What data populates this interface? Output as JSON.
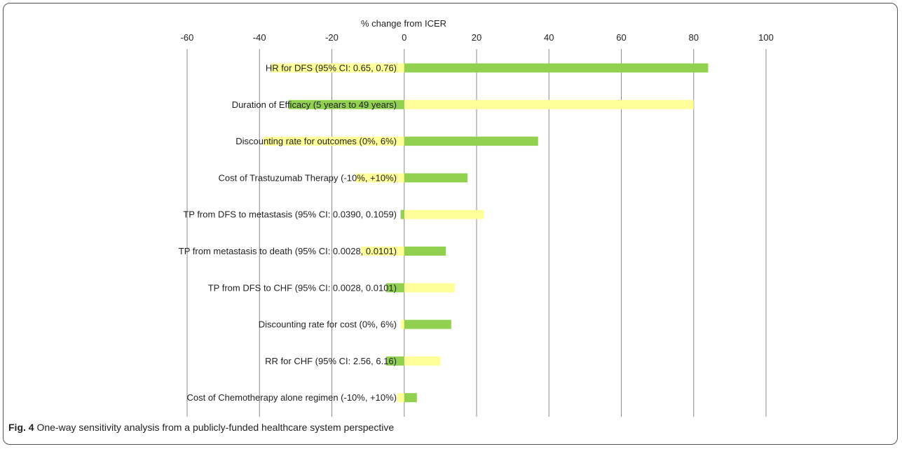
{
  "chart_data": {
    "type": "bar",
    "orientation": "horizontal",
    "chart_subtype": "tornado",
    "xlabel": "% change from ICER",
    "xlim": [
      -60,
      100
    ],
    "xticks": [
      -60,
      -40,
      -20,
      0,
      20,
      40,
      60,
      80,
      100
    ],
    "grid": true,
    "colors": {
      "low": "#92d050",
      "high": "#ffff99"
    },
    "categories": [
      "HR for DFS (95% CI: 0.65,  0.76)",
      "Duration of Efficacy (5 years to 49 years)",
      "Discounting rate for outcomes (0%,  6%)",
      "Cost of Trastuzumab Therapy (-10%,  +10%)",
      "TP from DFS to metastasis (95% CI: 0.0390,  0.1059)",
      "TP from metastasis to death (95% CI: 0.0028,  0.0101)",
      "TP from DFS to CHF (95% CI: 0.0028,  0.0101)",
      "Discounting rate for cost (0%,  6%)",
      "RR for CHF (95% CI: 2.56,  6.16)",
      "Cost of Chemotherapy alone regimen (-10%,  +10%)"
    ],
    "series": [
      {
        "values": [
          84,
          -32,
          37,
          17.5,
          -1,
          11.5,
          -5,
          13,
          -5,
          3.5
        ]
      },
      {
        "values": [
          -37,
          80,
          -39,
          -13.5,
          22,
          -12,
          14,
          -1,
          10,
          -2
        ]
      }
    ]
  },
  "caption": {
    "label": "Fig. 4",
    "text": "One-way sensitivity analysis from a publicly-funded healthcare system perspective"
  }
}
